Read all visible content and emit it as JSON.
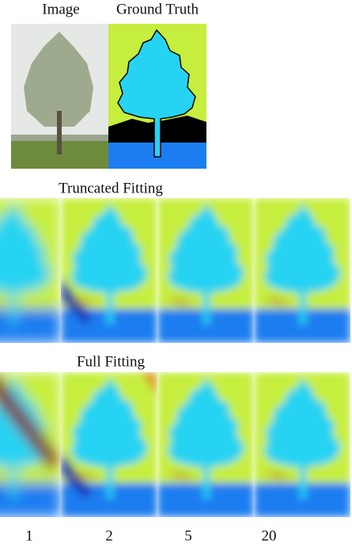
{
  "header": {
    "image_label": "Image",
    "ground_truth_label": "Ground Truth"
  },
  "sections": [
    {
      "title": "Truncated Fitting"
    },
    {
      "title": "Full Fitting"
    }
  ],
  "iterations": [
    "1",
    "2",
    "5",
    "20"
  ]
}
